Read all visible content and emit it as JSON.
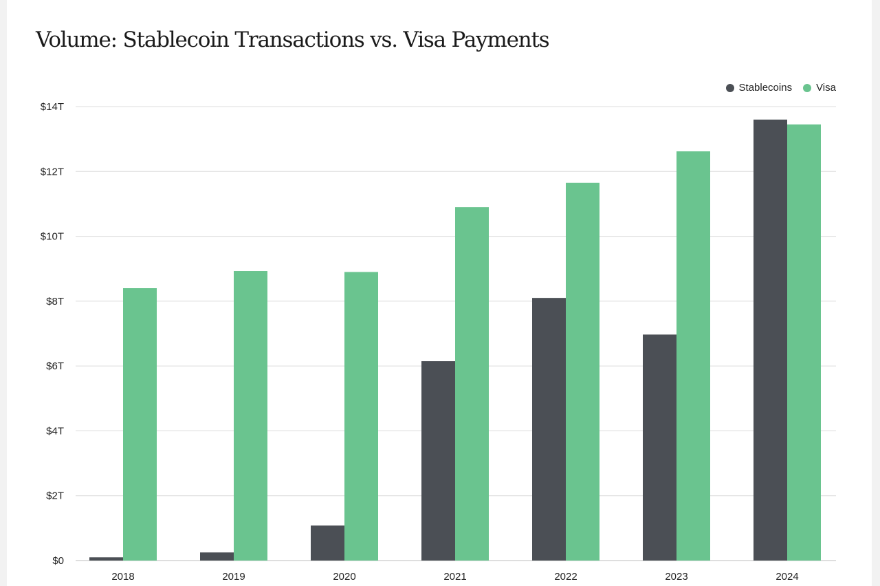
{
  "chart_data": {
    "type": "bar",
    "title": "Volume: Stablecoin Transactions vs. Visa Payments",
    "categories": [
      "2018",
      "2019",
      "2020",
      "2021",
      "2022",
      "2023",
      "2024"
    ],
    "series": [
      {
        "name": "Stablecoins",
        "color": "#4b4f55",
        "values": [
          0.1,
          0.25,
          1.08,
          6.15,
          8.1,
          6.97,
          13.6
        ]
      },
      {
        "name": "Visa",
        "color": "#6ac48f",
        "values": [
          8.4,
          8.93,
          8.9,
          10.9,
          11.65,
          12.62,
          13.45
        ]
      }
    ],
    "ylim": [
      0,
      14
    ],
    "yticks": [
      0,
      2,
      4,
      6,
      8,
      10,
      12,
      14
    ],
    "ytick_labels": [
      "$0",
      "$2T",
      "$4T",
      "$6T",
      "$8T",
      "$10T",
      "$12T",
      "$14T"
    ],
    "xlabel": "",
    "ylabel": "",
    "grid": true,
    "legend_position": "top-right"
  }
}
